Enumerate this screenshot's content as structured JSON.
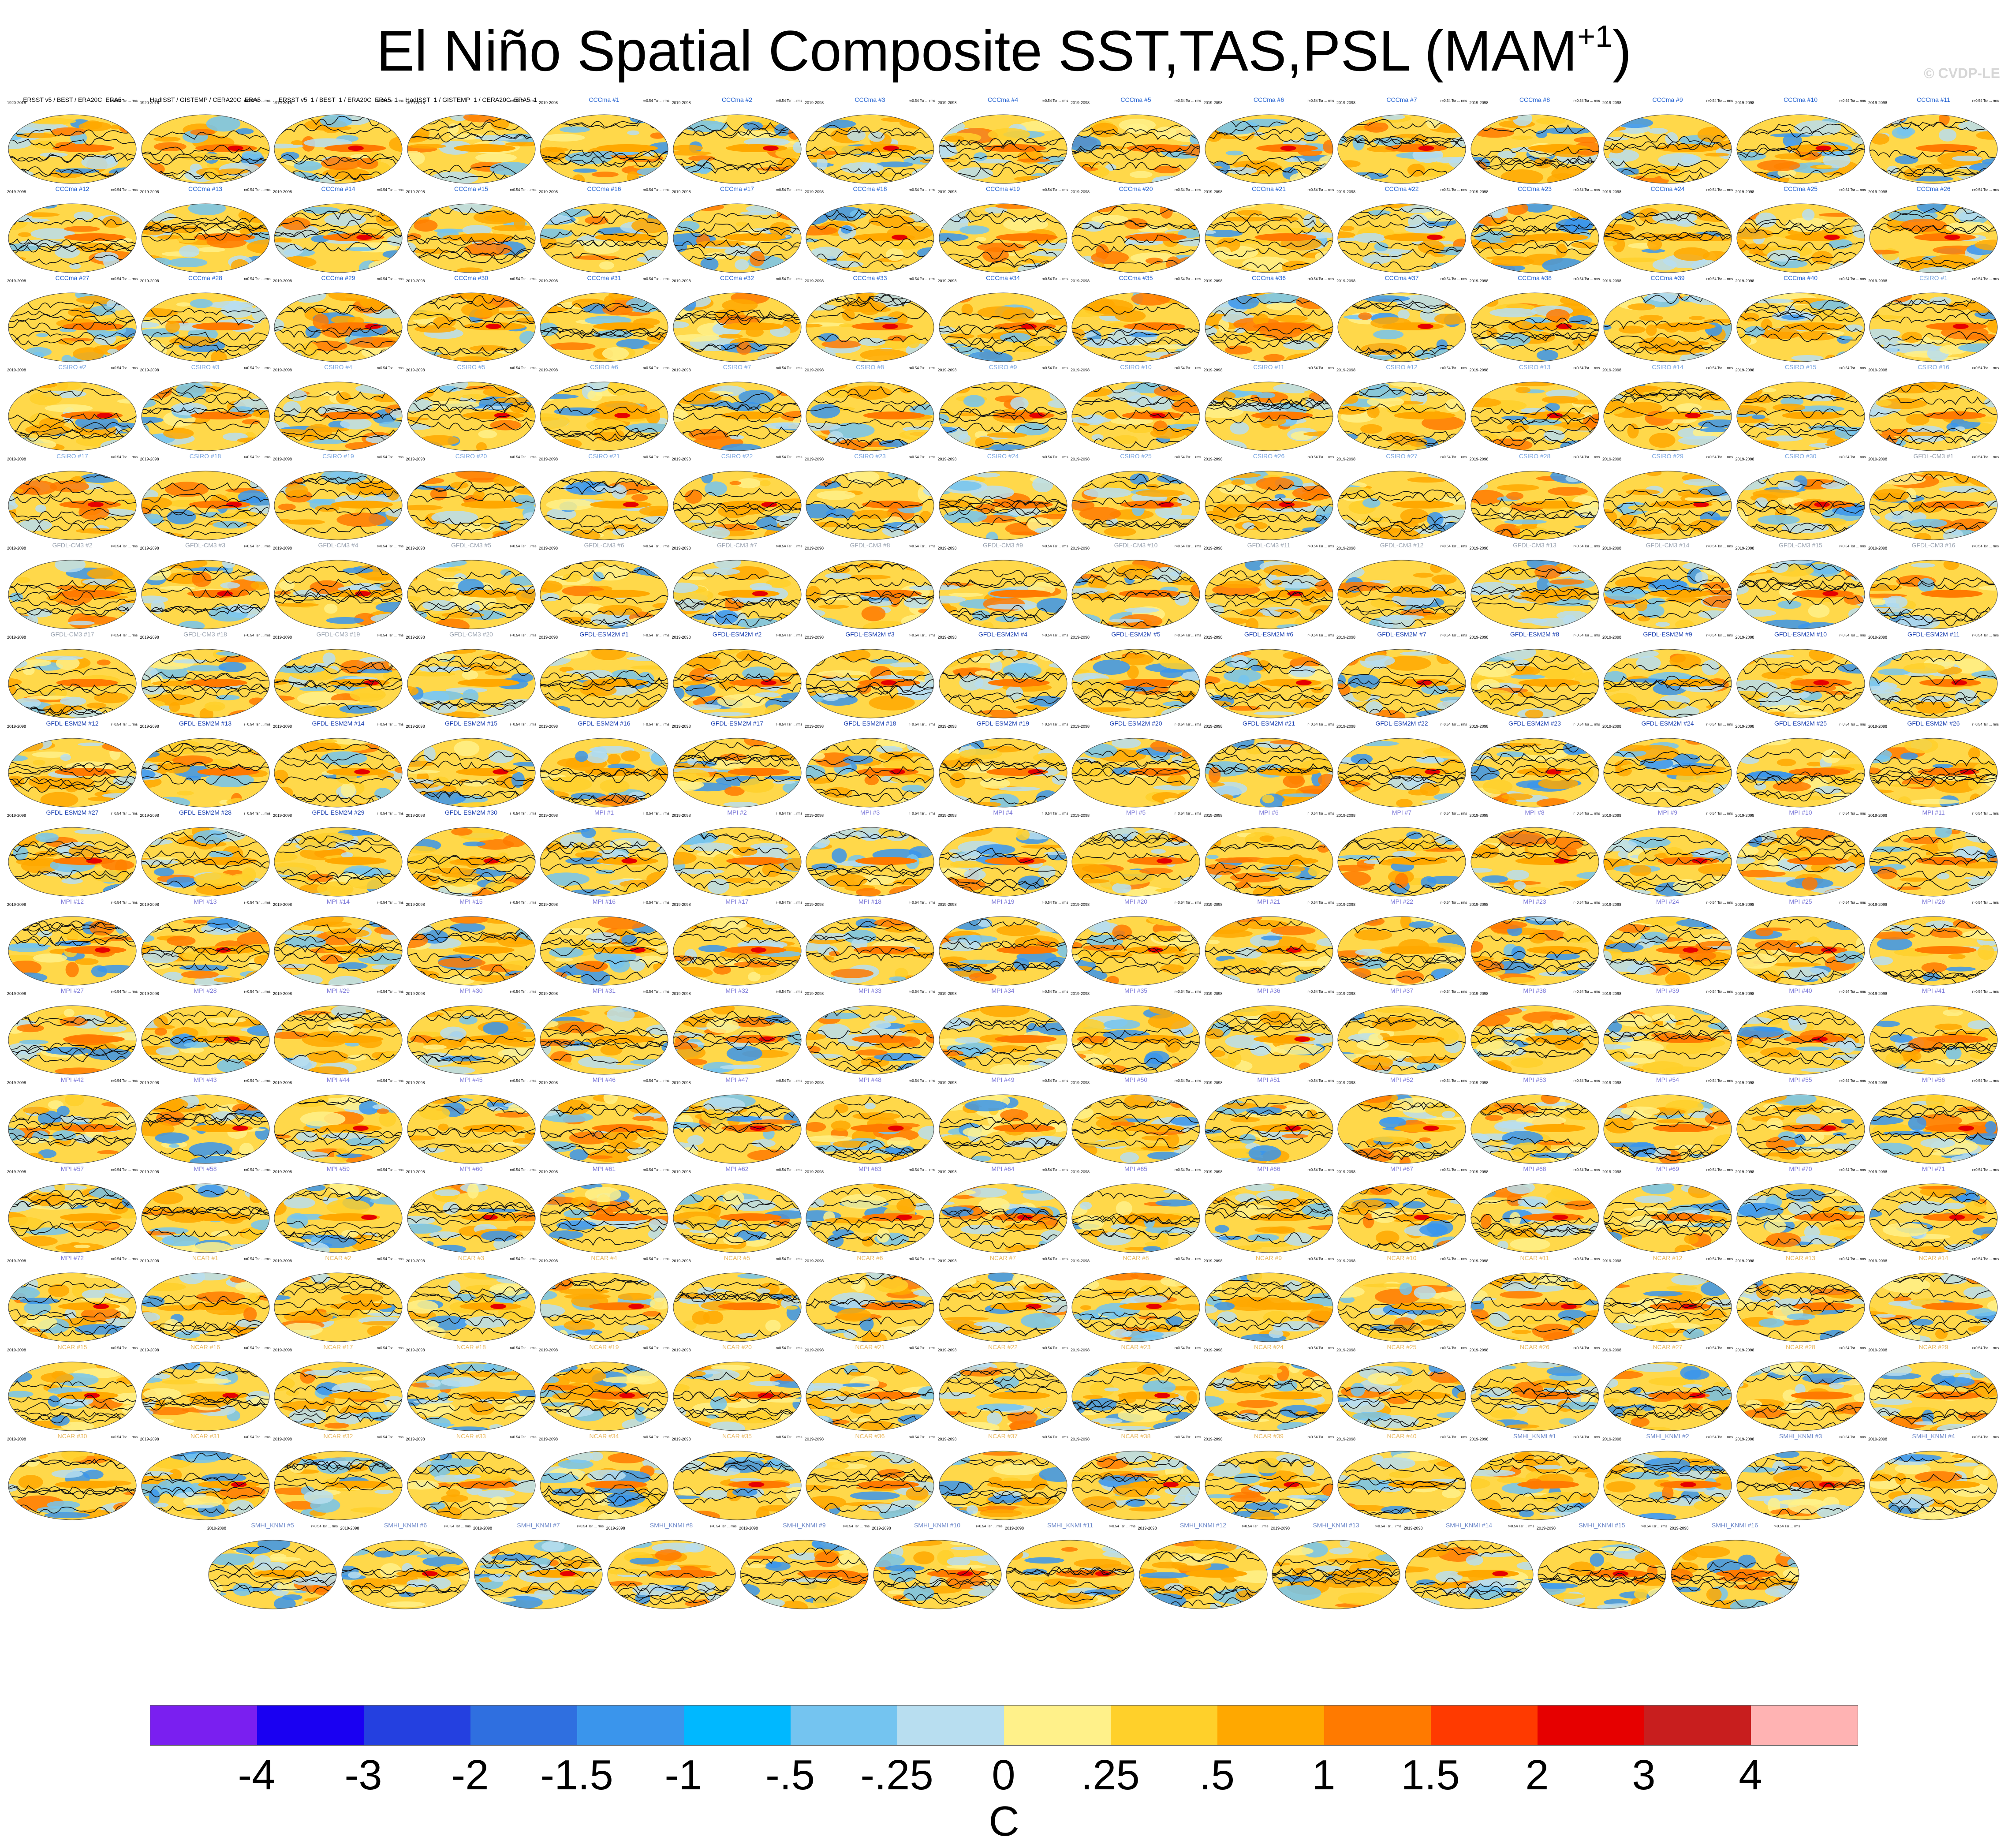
{
  "title": "El Niño Spatial Composite SST,TAS,PSL (MAM",
  "title_superscript": "+1",
  "title_close": ")",
  "watermark": "© CVDP-LE",
  "panel_text": {
    "obs_period": "1920-2018",
    "model_period": "2019-2098",
    "stats": "r=0.54 Tsr ... rms"
  },
  "panels": [
    {
      "label": "ERSST v5 / BEST / ERA20C_ERA5",
      "color": "#000000",
      "period": "1920-2018"
    },
    {
      "label": "HadISST / GISTEMP / CERA20C_ERA5",
      "color": "#000000",
      "period": "1920-2018"
    },
    {
      "label": "ERSST v5_1 / BEST_1 / ERA20C_ERA5_1",
      "color": "#000000",
      "period": "1979-2018"
    },
    {
      "label": "HadISST_1 / GISTEMP_1 / CERA20C_ERA5_1",
      "color": "#000000",
      "period": "1979-2018"
    },
    {
      "label": "CCCma #1",
      "color": "#1f5fd0"
    },
    {
      "label": "CCCma #2",
      "color": "#1f5fd0"
    },
    {
      "label": "CCCma #3",
      "color": "#1f5fd0"
    },
    {
      "label": "CCCma #4",
      "color": "#1f5fd0"
    },
    {
      "label": "CCCma #5",
      "color": "#1f5fd0"
    },
    {
      "label": "CCCma #6",
      "color": "#1f5fd0"
    },
    {
      "label": "CCCma #7",
      "color": "#1f5fd0"
    },
    {
      "label": "CCCma #8",
      "color": "#1f5fd0"
    },
    {
      "label": "CCCma #9",
      "color": "#1f5fd0"
    },
    {
      "label": "CCCma #10",
      "color": "#1f5fd0"
    },
    {
      "label": "CCCma #11",
      "color": "#1f5fd0"
    },
    {
      "label": "CCCma #12",
      "color": "#1f5fd0"
    },
    {
      "label": "CCCma #13",
      "color": "#1f5fd0"
    },
    {
      "label": "CCCma #14",
      "color": "#1f5fd0"
    },
    {
      "label": "CCCma #15",
      "color": "#1f5fd0"
    },
    {
      "label": "CCCma #16",
      "color": "#1f5fd0"
    },
    {
      "label": "CCCma #17",
      "color": "#1f5fd0"
    },
    {
      "label": "CCCma #18",
      "color": "#1f5fd0"
    },
    {
      "label": "CCCma #19",
      "color": "#1f5fd0"
    },
    {
      "label": "CCCma #20",
      "color": "#1f5fd0"
    },
    {
      "label": "CCCma #21",
      "color": "#1f5fd0"
    },
    {
      "label": "CCCma #22",
      "color": "#1f5fd0"
    },
    {
      "label": "CCCma #23",
      "color": "#1f5fd0"
    },
    {
      "label": "CCCma #24",
      "color": "#1f5fd0"
    },
    {
      "label": "CCCma #25",
      "color": "#1f5fd0"
    },
    {
      "label": "CCCma #26",
      "color": "#1f5fd0"
    },
    {
      "label": "CCCma #27",
      "color": "#1f5fd0"
    },
    {
      "label": "CCCma #28",
      "color": "#1f5fd0"
    },
    {
      "label": "CCCma #29",
      "color": "#1f5fd0"
    },
    {
      "label": "CCCma #30",
      "color": "#1f5fd0"
    },
    {
      "label": "CCCma #31",
      "color": "#1f5fd0"
    },
    {
      "label": "CCCma #32",
      "color": "#1f5fd0"
    },
    {
      "label": "CCCma #33",
      "color": "#1f5fd0"
    },
    {
      "label": "CCCma #34",
      "color": "#1f5fd0"
    },
    {
      "label": "CCCma #35",
      "color": "#1f5fd0"
    },
    {
      "label": "CCCma #36",
      "color": "#1f5fd0"
    },
    {
      "label": "CCCma #37",
      "color": "#1f5fd0"
    },
    {
      "label": "CCCma #38",
      "color": "#1f5fd0"
    },
    {
      "label": "CCCma #39",
      "color": "#1f5fd0"
    },
    {
      "label": "CCCma #40",
      "color": "#1f5fd0"
    },
    {
      "label": "CSIRO #1",
      "color": "#7aa6e0"
    },
    {
      "label": "CSIRO #2",
      "color": "#7aa6e0"
    },
    {
      "label": "CSIRO #3",
      "color": "#7aa6e0"
    },
    {
      "label": "CSIRO #4",
      "color": "#7aa6e0"
    },
    {
      "label": "CSIRO #5",
      "color": "#7aa6e0"
    },
    {
      "label": "CSIRO #6",
      "color": "#7aa6e0"
    },
    {
      "label": "CSIRO #7",
      "color": "#7aa6e0"
    },
    {
      "label": "CSIRO #8",
      "color": "#7aa6e0"
    },
    {
      "label": "CSIRO #9",
      "color": "#7aa6e0"
    },
    {
      "label": "CSIRO #10",
      "color": "#7aa6e0"
    },
    {
      "label": "CSIRO #11",
      "color": "#7aa6e0"
    },
    {
      "label": "CSIRO #12",
      "color": "#7aa6e0"
    },
    {
      "label": "CSIRO #13",
      "color": "#7aa6e0"
    },
    {
      "label": "CSIRO #14",
      "color": "#7aa6e0"
    },
    {
      "label": "CSIRO #15",
      "color": "#7aa6e0"
    },
    {
      "label": "CSIRO #16",
      "color": "#7aa6e0"
    },
    {
      "label": "CSIRO #17",
      "color": "#7aa6e0"
    },
    {
      "label": "CSIRO #18",
      "color": "#7aa6e0"
    },
    {
      "label": "CSIRO #19",
      "color": "#7aa6e0"
    },
    {
      "label": "CSIRO #20",
      "color": "#7aa6e0"
    },
    {
      "label": "CSIRO #21",
      "color": "#7aa6e0"
    },
    {
      "label": "CSIRO #22",
      "color": "#7aa6e0"
    },
    {
      "label": "CSIRO #23",
      "color": "#7aa6e0"
    },
    {
      "label": "CSIRO #24",
      "color": "#7aa6e0"
    },
    {
      "label": "CSIRO #25",
      "color": "#7aa6e0"
    },
    {
      "label": "CSIRO #26",
      "color": "#7aa6e0"
    },
    {
      "label": "CSIRO #27",
      "color": "#7aa6e0"
    },
    {
      "label": "CSIRO #28",
      "color": "#7aa6e0"
    },
    {
      "label": "CSIRO #29",
      "color": "#7aa6e0"
    },
    {
      "label": "CSIRO #30",
      "color": "#7aa6e0"
    },
    {
      "label": "GFDL-CM3 #1",
      "color": "#9aa3b0"
    },
    {
      "label": "GFDL-CM3 #2",
      "color": "#9aa3b0"
    },
    {
      "label": "GFDL-CM3 #3",
      "color": "#9aa3b0"
    },
    {
      "label": "GFDL-CM3 #4",
      "color": "#9aa3b0"
    },
    {
      "label": "GFDL-CM3 #5",
      "color": "#9aa3b0"
    },
    {
      "label": "GFDL-CM3 #6",
      "color": "#9aa3b0"
    },
    {
      "label": "GFDL-CM3 #7",
      "color": "#9aa3b0"
    },
    {
      "label": "GFDL-CM3 #8",
      "color": "#9aa3b0"
    },
    {
      "label": "GFDL-CM3 #9",
      "color": "#9aa3b0"
    },
    {
      "label": "GFDL-CM3 #10",
      "color": "#9aa3b0"
    },
    {
      "label": "GFDL-CM3 #11",
      "color": "#9aa3b0"
    },
    {
      "label": "GFDL-CM3 #12",
      "color": "#9aa3b0"
    },
    {
      "label": "GFDL-CM3 #13",
      "color": "#9aa3b0"
    },
    {
      "label": "GFDL-CM3 #14",
      "color": "#9aa3b0"
    },
    {
      "label": "GFDL-CM3 #15",
      "color": "#9aa3b0"
    },
    {
      "label": "GFDL-CM3 #16",
      "color": "#9aa3b0"
    },
    {
      "label": "GFDL-CM3 #17",
      "color": "#9aa3b0"
    },
    {
      "label": "GFDL-CM3 #18",
      "color": "#9aa3b0"
    },
    {
      "label": "GFDL-CM3 #19",
      "color": "#9aa3b0"
    },
    {
      "label": "GFDL-CM3 #20",
      "color": "#9aa3b0"
    },
    {
      "label": "GFDL-ESM2M #1",
      "color": "#1a3fb0"
    },
    {
      "label": "GFDL-ESM2M #2",
      "color": "#1a3fb0"
    },
    {
      "label": "GFDL-ESM2M #3",
      "color": "#1a3fb0"
    },
    {
      "label": "GFDL-ESM2M #4",
      "color": "#1a3fb0"
    },
    {
      "label": "GFDL-ESM2M #5",
      "color": "#1a3fb0"
    },
    {
      "label": "GFDL-ESM2M #6",
      "color": "#1a3fb0"
    },
    {
      "label": "GFDL-ESM2M #7",
      "color": "#1a3fb0"
    },
    {
      "label": "GFDL-ESM2M #8",
      "color": "#1a3fb0"
    },
    {
      "label": "GFDL-ESM2M #9",
      "color": "#1a3fb0"
    },
    {
      "label": "GFDL-ESM2M #10",
      "color": "#1a3fb0"
    },
    {
      "label": "GFDL-ESM2M #11",
      "color": "#1a3fb0"
    },
    {
      "label": "GFDL-ESM2M #12",
      "color": "#1a3fb0"
    },
    {
      "label": "GFDL-ESM2M #13",
      "color": "#1a3fb0"
    },
    {
      "label": "GFDL-ESM2M #14",
      "color": "#1a3fb0"
    },
    {
      "label": "GFDL-ESM2M #15",
      "color": "#1a3fb0"
    },
    {
      "label": "GFDL-ESM2M #16",
      "color": "#1a3fb0"
    },
    {
      "label": "GFDL-ESM2M #17",
      "color": "#1a3fb0"
    },
    {
      "label": "GFDL-ESM2M #18",
      "color": "#1a3fb0"
    },
    {
      "label": "GFDL-ESM2M #19",
      "color": "#1a3fb0"
    },
    {
      "label": "GFDL-ESM2M #20",
      "color": "#1a3fb0"
    },
    {
      "label": "GFDL-ESM2M #21",
      "color": "#1a3fb0"
    },
    {
      "label": "GFDL-ESM2M #22",
      "color": "#1a3fb0"
    },
    {
      "label": "GFDL-ESM2M #23",
      "color": "#1a3fb0"
    },
    {
      "label": "GFDL-ESM2M #24",
      "color": "#1a3fb0"
    },
    {
      "label": "GFDL-ESM2M #25",
      "color": "#1a3fb0"
    },
    {
      "label": "GFDL-ESM2M #26",
      "color": "#1a3fb0"
    },
    {
      "label": "GFDL-ESM2M #27",
      "color": "#1a3fb0"
    },
    {
      "label": "GFDL-ESM2M #28",
      "color": "#1a3fb0"
    },
    {
      "label": "GFDL-ESM2M #29",
      "color": "#1a3fb0"
    },
    {
      "label": "GFDL-ESM2M #30",
      "color": "#1a3fb0"
    },
    {
      "label": "MPI #1",
      "color": "#7b78d8"
    },
    {
      "label": "MPI #2",
      "color": "#7b78d8"
    },
    {
      "label": "MPI #3",
      "color": "#7b78d8"
    },
    {
      "label": "MPI #4",
      "color": "#7b78d8"
    },
    {
      "label": "MPI #5",
      "color": "#7b78d8"
    },
    {
      "label": "MPI #6",
      "color": "#7b78d8"
    },
    {
      "label": "MPI #7",
      "color": "#7b78d8"
    },
    {
      "label": "MPI #8",
      "color": "#7b78d8"
    },
    {
      "label": "MPI #9",
      "color": "#7b78d8"
    },
    {
      "label": "MPI #10",
      "color": "#7b78d8"
    },
    {
      "label": "MPI #11",
      "color": "#7b78d8"
    },
    {
      "label": "MPI #12",
      "color": "#7b78d8"
    },
    {
      "label": "MPI #13",
      "color": "#7b78d8"
    },
    {
      "label": "MPI #14",
      "color": "#7b78d8"
    },
    {
      "label": "MPI #15",
      "color": "#7b78d8"
    },
    {
      "label": "MPI #16",
      "color": "#7b78d8"
    },
    {
      "label": "MPI #17",
      "color": "#7b78d8"
    },
    {
      "label": "MPI #18",
      "color": "#7b78d8"
    },
    {
      "label": "MPI #19",
      "color": "#7b78d8"
    },
    {
      "label": "MPI #20",
      "color": "#7b78d8"
    },
    {
      "label": "MPI #21",
      "color": "#7b78d8"
    },
    {
      "label": "MPI #22",
      "color": "#7b78d8"
    },
    {
      "label": "MPI #23",
      "color": "#7b78d8"
    },
    {
      "label": "MPI #24",
      "color": "#7b78d8"
    },
    {
      "label": "MPI #25",
      "color": "#7b78d8"
    },
    {
      "label": "MPI #26",
      "color": "#7b78d8"
    },
    {
      "label": "MPI #27",
      "color": "#7b78d8"
    },
    {
      "label": "MPI #28",
      "color": "#7b78d8"
    },
    {
      "label": "MPI #29",
      "color": "#7b78d8"
    },
    {
      "label": "MPI #30",
      "color": "#7b78d8"
    },
    {
      "label": "MPI #31",
      "color": "#7b78d8"
    },
    {
      "label": "MPI #32",
      "color": "#7b78d8"
    },
    {
      "label": "MPI #33",
      "color": "#7b78d8"
    },
    {
      "label": "MPI #34",
      "color": "#7b78d8"
    },
    {
      "label": "MPI #35",
      "color": "#7b78d8"
    },
    {
      "label": "MPI #36",
      "color": "#7b78d8"
    },
    {
      "label": "MPI #37",
      "color": "#7b78d8"
    },
    {
      "label": "MPI #38",
      "color": "#7b78d8"
    },
    {
      "label": "MPI #39",
      "color": "#7b78d8"
    },
    {
      "label": "MPI #40",
      "color": "#7b78d8"
    },
    {
      "label": "MPI #41",
      "color": "#7b78d8"
    },
    {
      "label": "MPI #42",
      "color": "#7b78d8"
    },
    {
      "label": "MPI #43",
      "color": "#7b78d8"
    },
    {
      "label": "MPI #44",
      "color": "#7b78d8"
    },
    {
      "label": "MPI #45",
      "color": "#7b78d8"
    },
    {
      "label": "MPI #46",
      "color": "#7b78d8"
    },
    {
      "label": "MPI #47",
      "color": "#7b78d8"
    },
    {
      "label": "MPI #48",
      "color": "#7b78d8"
    },
    {
      "label": "MPI #49",
      "color": "#7b78d8"
    },
    {
      "label": "MPI #50",
      "color": "#7b78d8"
    },
    {
      "label": "MPI #51",
      "color": "#7b78d8"
    },
    {
      "label": "MPI #52",
      "color": "#7b78d8"
    },
    {
      "label": "MPI #53",
      "color": "#7b78d8"
    },
    {
      "label": "MPI #54",
      "color": "#7b78d8"
    },
    {
      "label": "MPI #55",
      "color": "#7b78d8"
    },
    {
      "label": "MPI #56",
      "color": "#7b78d8"
    },
    {
      "label": "MPI #57",
      "color": "#7b78d8"
    },
    {
      "label": "MPI #58",
      "color": "#7b78d8"
    },
    {
      "label": "MPI #59",
      "color": "#7b78d8"
    },
    {
      "label": "MPI #60",
      "color": "#7b78d8"
    },
    {
      "label": "MPI #61",
      "color": "#7b78d8"
    },
    {
      "label": "MPI #62",
      "color": "#7b78d8"
    },
    {
      "label": "MPI #63",
      "color": "#7b78d8"
    },
    {
      "label": "MPI #64",
      "color": "#7b78d8"
    },
    {
      "label": "MPI #65",
      "color": "#7b78d8"
    },
    {
      "label": "MPI #66",
      "color": "#7b78d8"
    },
    {
      "label": "MPI #67",
      "color": "#7b78d8"
    },
    {
      "label": "MPI #68",
      "color": "#7b78d8"
    },
    {
      "label": "MPI #69",
      "color": "#7b78d8"
    },
    {
      "label": "MPI #70",
      "color": "#7b78d8"
    },
    {
      "label": "MPI #71",
      "color": "#7b78d8"
    },
    {
      "label": "MPI #72",
      "color": "#7b78d8"
    },
    {
      "label": "NCAR #1",
      "color": "#e8b860"
    },
    {
      "label": "NCAR #2",
      "color": "#e8b860"
    },
    {
      "label": "NCAR #3",
      "color": "#e8b860"
    },
    {
      "label": "NCAR #4",
      "color": "#e8b860"
    },
    {
      "label": "NCAR #5",
      "color": "#e8b860"
    },
    {
      "label": "NCAR #6",
      "color": "#e8b860"
    },
    {
      "label": "NCAR #7",
      "color": "#e8b860"
    },
    {
      "label": "NCAR #8",
      "color": "#e8b860"
    },
    {
      "label": "NCAR #9",
      "color": "#e8b860"
    },
    {
      "label": "NCAR #10",
      "color": "#e8b860"
    },
    {
      "label": "NCAR #11",
      "color": "#e8b860"
    },
    {
      "label": "NCAR #12",
      "color": "#e8b860"
    },
    {
      "label": "NCAR #13",
      "color": "#e8b860"
    },
    {
      "label": "NCAR #14",
      "color": "#e8b860"
    },
    {
      "label": "NCAR #15",
      "color": "#e8b860"
    },
    {
      "label": "NCAR #16",
      "color": "#e8b860"
    },
    {
      "label": "NCAR #17",
      "color": "#e8b860"
    },
    {
      "label": "NCAR #18",
      "color": "#e8b860"
    },
    {
      "label": "NCAR #19",
      "color": "#e8b860"
    },
    {
      "label": "NCAR #20",
      "color": "#e8b860"
    },
    {
      "label": "NCAR #21",
      "color": "#e8b860"
    },
    {
      "label": "NCAR #22",
      "color": "#e8b860"
    },
    {
      "label": "NCAR #23",
      "color": "#e8b860"
    },
    {
      "label": "NCAR #24",
      "color": "#e8b860"
    },
    {
      "label": "NCAR #25",
      "color": "#e8b860"
    },
    {
      "label": "NCAR #26",
      "color": "#e8b860"
    },
    {
      "label": "NCAR #27",
      "color": "#e8b860"
    },
    {
      "label": "NCAR #28",
      "color": "#e8b860"
    },
    {
      "label": "NCAR #29",
      "color": "#e8b860"
    },
    {
      "label": "NCAR #30",
      "color": "#e8b860"
    },
    {
      "label": "NCAR #31",
      "color": "#e8b860"
    },
    {
      "label": "NCAR #32",
      "color": "#e8b860"
    },
    {
      "label": "NCAR #33",
      "color": "#e8b860"
    },
    {
      "label": "NCAR #34",
      "color": "#e8b860"
    },
    {
      "label": "NCAR #35",
      "color": "#e8b860"
    },
    {
      "label": "NCAR #36",
      "color": "#e8b860"
    },
    {
      "label": "NCAR #37",
      "color": "#e8b860"
    },
    {
      "label": "NCAR #38",
      "color": "#e8b860"
    },
    {
      "label": "NCAR #39",
      "color": "#e8b860"
    },
    {
      "label": "NCAR #40",
      "color": "#e8b860"
    },
    {
      "label": "SMHI_KNMI #1",
      "color": "#6a86c8"
    },
    {
      "label": "SMHI_KNMI #2",
      "color": "#6a86c8"
    },
    {
      "label": "SMHI_KNMI #3",
      "color": "#6a86c8"
    },
    {
      "label": "SMHI_KNMI #4",
      "color": "#6a86c8"
    },
    {
      "label": "SMHI_KNMI #5",
      "color": "#6a86c8"
    },
    {
      "label": "SMHI_KNMI #6",
      "color": "#6a86c8"
    },
    {
      "label": "SMHI_KNMI #7",
      "color": "#6a86c8"
    },
    {
      "label": "SMHI_KNMI #8",
      "color": "#6a86c8"
    },
    {
      "label": "SMHI_KNMI #9",
      "color": "#6a86c8"
    },
    {
      "label": "SMHI_KNMI #10",
      "color": "#6a86c8"
    },
    {
      "label": "SMHI_KNMI #11",
      "color": "#6a86c8"
    },
    {
      "label": "SMHI_KNMI #12",
      "color": "#6a86c8"
    },
    {
      "label": "SMHI_KNMI #13",
      "color": "#6a86c8"
    },
    {
      "label": "SMHI_KNMI #14",
      "color": "#6a86c8"
    },
    {
      "label": "SMHI_KNMI #15",
      "color": "#6a86c8"
    },
    {
      "label": "SMHI_KNMI #16",
      "color": "#6a86c8"
    }
  ],
  "colorbar": {
    "colors": [
      "#7a1ff0",
      "#1a00f2",
      "#2440e0",
      "#2f6fe0",
      "#3a95ec",
      "#00b8ff",
      "#74c4f0",
      "#b8def0",
      "#fff18a",
      "#ffd02a",
      "#ffa800",
      "#ff7a00",
      "#ff3a00",
      "#e60000",
      "#c81e1e",
      "#ffb3b3"
    ],
    "labels": [
      "-4",
      "-3",
      "-2",
      "-1.5",
      "-1",
      "-.5",
      "-.25",
      "0",
      ".25",
      ".5",
      "1",
      "1.5",
      "2",
      "3",
      "4"
    ],
    "unit": "C"
  }
}
